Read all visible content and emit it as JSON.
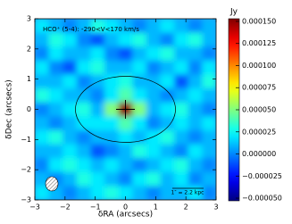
{
  "chart_data": {
    "type": "heatmap",
    "annotation": "HCO⁺ (5-4): -290<V<170 km/s",
    "scale_bar": "1″ = 2.2 kpc",
    "x_label": "δRA (arcsecs)",
    "y_label": "δDec (arcsecs)",
    "colorbar_label": "Jy",
    "colormap": "jet",
    "xlim": [
      -3,
      3
    ],
    "ylim": [
      -3,
      3
    ],
    "xticks": [
      {
        "value": -3,
        "label": "−3"
      },
      {
        "value": -2,
        "label": "−2"
      },
      {
        "value": -1,
        "label": "−1"
      },
      0,
      1,
      2,
      3
    ],
    "yticks": [
      {
        "value": -3,
        "label": "−3"
      },
      {
        "value": -2,
        "label": "−2"
      },
      {
        "value": -1,
        "label": "−1"
      },
      0,
      1,
      2,
      3
    ],
    "zlim": [
      -5.3e-05,
      0.000153
    ],
    "zticks": [
      {
        "value": 0.00015,
        "label": "0.000150"
      },
      {
        "value": 0.000125,
        "label": "0.000125"
      },
      {
        "value": 0.0001,
        "label": "0.000100"
      },
      {
        "value": 7.5e-05,
        "label": "0.000075"
      },
      {
        "value": 5e-05,
        "label": "0.000050"
      },
      {
        "value": 2.5e-05,
        "label": "0.000025"
      },
      {
        "value": 0,
        "label": "0.000000"
      },
      {
        "value": -2.5e-05,
        "label": "−0.000025"
      },
      {
        "value": -5e-05,
        "label": "−0.000050"
      }
    ],
    "z": [
      [
        2e-05,
        1e-05,
        0,
        1e-05,
        3e-05,
        2e-05,
        1e-05,
        0,
        1e-05,
        2e-05,
        1e-05,
        0,
        1e-05
      ],
      [
        1e-05,
        3e-05,
        2e-05,
        0,
        -1e-05,
        1e-05,
        2e-05,
        3e-05,
        1e-05,
        0,
        2e-05,
        3e-05,
        1e-05
      ],
      [
        0,
        2e-05,
        1e-05,
        1e-05,
        2e-05,
        0,
        -1e-05,
        1e-05,
        2e-05,
        3e-05,
        1e-05,
        1e-05,
        0
      ],
      [
        2e-05,
        0,
        -1e-05,
        2e-05,
        3e-05,
        1e-05,
        1e-05,
        2e-05,
        0,
        1e-05,
        2e-05,
        0,
        2e-05
      ],
      [
        1e-05,
        1e-05,
        2e-05,
        0,
        1e-05,
        2e-05,
        3e-05,
        1e-05,
        1e-05,
        2e-05,
        -1e-05,
        1e-05,
        3e-05
      ],
      [
        3e-05,
        2e-05,
        1e-05,
        1e-05,
        0,
        2e-05,
        4e-05,
        2e-05,
        1e-05,
        0,
        1e-05,
        2e-05,
        1e-05
      ],
      [
        0,
        1e-05,
        2e-05,
        3e-05,
        1e-05,
        5e-05,
        0.00015,
        5e-05,
        1e-05,
        2e-05,
        3e-05,
        1e-05,
        0
      ],
      [
        1e-05,
        0,
        1e-05,
        2e-05,
        2e-05,
        2e-05,
        4e-05,
        2e-05,
        0,
        1e-05,
        2e-05,
        1e-05,
        2e-05
      ],
      [
        2e-05,
        3e-05,
        1e-05,
        0,
        1e-05,
        1e-05,
        2e-05,
        1e-05,
        2e-05,
        3e-05,
        1e-05,
        0,
        1e-05
      ],
      [
        1e-05,
        1e-05,
        2e-05,
        1e-05,
        -1e-05,
        0,
        1e-05,
        3e-05,
        2e-05,
        1e-05,
        0,
        2e-05,
        1e-05
      ],
      [
        0,
        2e-05,
        3e-05,
        2e-05,
        1e-05,
        2e-05,
        1e-05,
        0,
        1e-05,
        2e-05,
        3e-05,
        1e-05,
        0
      ],
      [
        1e-05,
        0,
        1e-05,
        3e-05,
        2e-05,
        1e-05,
        0,
        2e-05,
        3e-05,
        1e-05,
        2e-05,
        0,
        1e-05
      ],
      [
        2e-05,
        1e-05,
        0,
        1e-05,
        2e-05,
        3e-05,
        2e-05,
        1e-05,
        0,
        1e-05,
        1e-05,
        2e-05,
        0
      ]
    ]
  }
}
